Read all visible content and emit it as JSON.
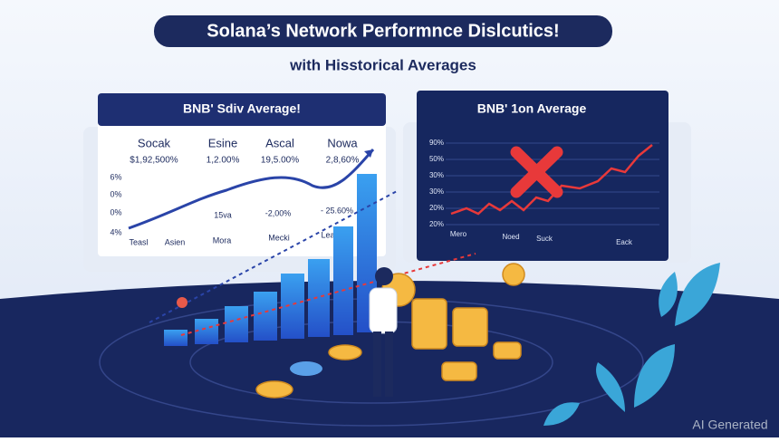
{
  "header": {
    "title": "Solana’s Network Performnce Dislcutics!",
    "subtitle": "with Hisstorical Averages"
  },
  "left_panel": {
    "title": "BNB' Sdiv Average!",
    "columns": [
      {
        "name": "Socak",
        "value": "$1,92,500%"
      },
      {
        "name": "Esine",
        "value": "1,2.00%"
      },
      {
        "name": "Ascal",
        "value": "19,5.00%"
      },
      {
        "name": "Nowa",
        "value": "2,8,60%"
      }
    ],
    "y_labels": [
      "6%",
      "0%",
      "0%",
      "4%"
    ],
    "annotations": [
      "15va",
      "-2,00%",
      "- 25.60%"
    ],
    "x_labels": [
      "Teasl",
      "Asien",
      "Mora",
      "Mecki",
      "Lea"
    ]
  },
  "right_panel": {
    "title": "BNB' 1on Average",
    "y_labels": [
      "90%",
      "50%",
      "30%",
      "30%",
      "20%",
      "20%"
    ],
    "x_labels": [
      "Mero",
      "Noed",
      "Suck",
      "Eack"
    ]
  },
  "watermark": "AI Generated"
}
